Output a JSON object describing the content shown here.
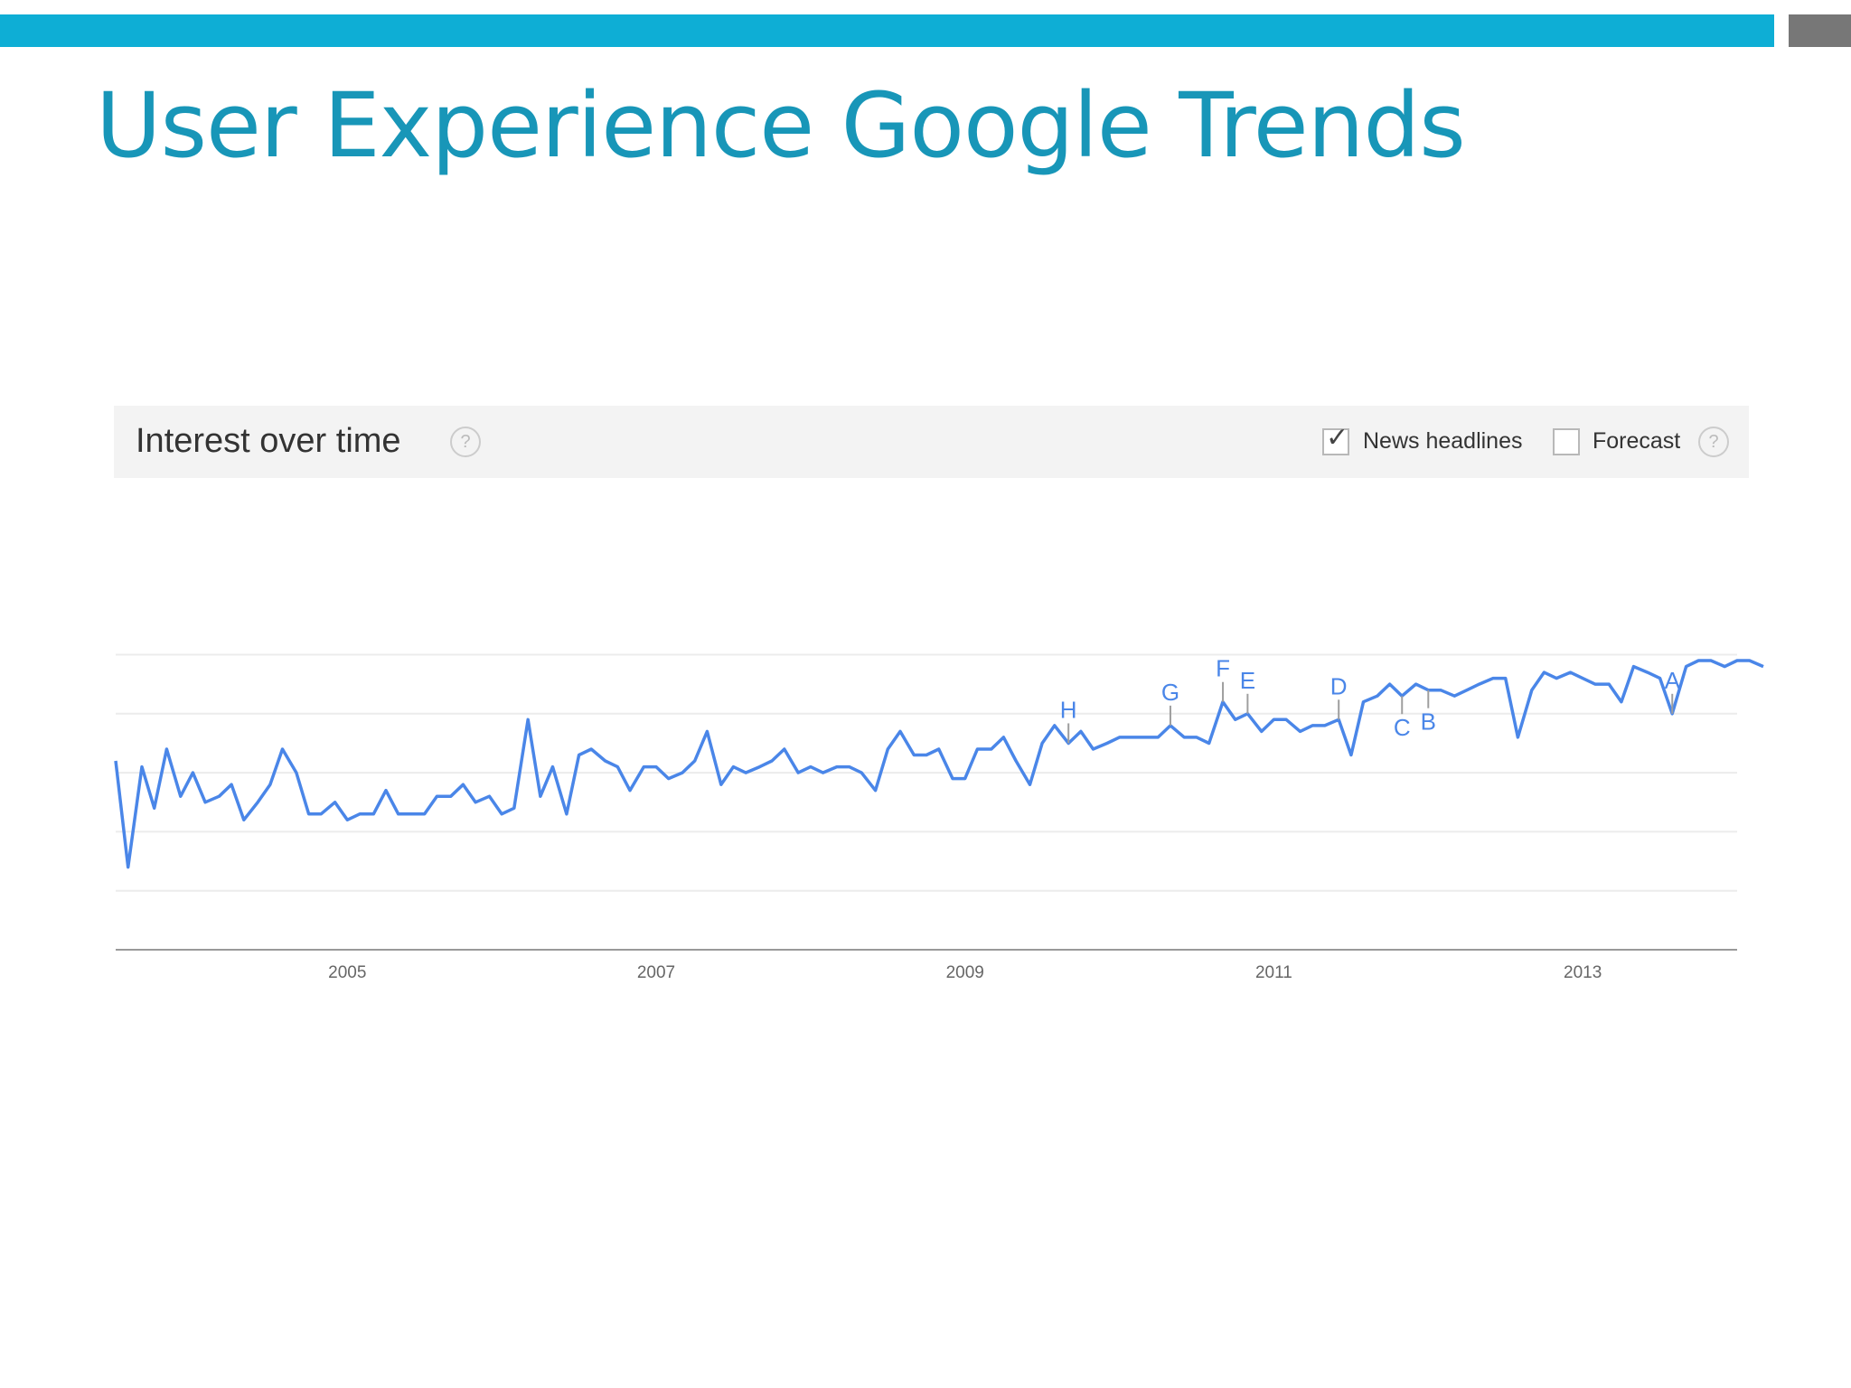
{
  "slide": {
    "title": "User Experience Google Trends"
  },
  "header": {
    "title": "Interest over time",
    "help_glyph": "?",
    "options": {
      "news_headlines": {
        "label": "News headlines",
        "checked": true
      },
      "forecast": {
        "label": "Forecast",
        "checked": false
      }
    }
  },
  "chart_data": {
    "type": "line",
    "title": "",
    "xlabel": "",
    "ylabel": "",
    "x_ticks": [
      "2005",
      "2007",
      "2009",
      "2011",
      "2013"
    ],
    "xlim": [
      2004.0,
      2014.5
    ],
    "ylim": [
      0,
      100
    ],
    "grid": true,
    "line_color": "#4a86e8",
    "annotation_color": "#4a86e8",
    "series": [
      {
        "points": [
          [
            2004.0,
            32
          ],
          [
            2004.08,
            14
          ],
          [
            2004.17,
            31
          ],
          [
            2004.25,
            24
          ],
          [
            2004.33,
            34
          ],
          [
            2004.42,
            26
          ],
          [
            2004.5,
            30
          ],
          [
            2004.58,
            25
          ],
          [
            2004.67,
            26
          ],
          [
            2004.75,
            28
          ],
          [
            2004.83,
            22
          ],
          [
            2004.92,
            25
          ],
          [
            2005.0,
            28
          ],
          [
            2005.08,
            34
          ],
          [
            2005.17,
            30
          ],
          [
            2005.25,
            23
          ],
          [
            2005.33,
            23
          ],
          [
            2005.42,
            25
          ],
          [
            2005.5,
            22
          ],
          [
            2005.58,
            23
          ],
          [
            2005.67,
            23
          ],
          [
            2005.75,
            27
          ],
          [
            2005.83,
            23
          ],
          [
            2005.92,
            23
          ],
          [
            2006.0,
            23
          ],
          [
            2006.08,
            26
          ],
          [
            2006.17,
            26
          ],
          [
            2006.25,
            28
          ],
          [
            2006.33,
            25
          ],
          [
            2006.42,
            26
          ],
          [
            2006.5,
            23
          ],
          [
            2006.58,
            24
          ],
          [
            2006.67,
            39
          ],
          [
            2006.75,
            26
          ],
          [
            2006.83,
            31
          ],
          [
            2006.92,
            23
          ],
          [
            2007.0,
            33
          ],
          [
            2007.08,
            34
          ],
          [
            2007.17,
            32
          ],
          [
            2007.25,
            31
          ],
          [
            2007.33,
            27
          ],
          [
            2007.42,
            31
          ],
          [
            2007.5,
            31
          ],
          [
            2007.58,
            29
          ],
          [
            2007.67,
            30
          ],
          [
            2007.75,
            32
          ],
          [
            2007.83,
            37
          ],
          [
            2007.92,
            28
          ],
          [
            2008.0,
            31
          ],
          [
            2008.08,
            30
          ],
          [
            2008.17,
            31
          ],
          [
            2008.25,
            32
          ],
          [
            2008.33,
            34
          ],
          [
            2008.42,
            30
          ],
          [
            2008.5,
            31
          ],
          [
            2008.58,
            30
          ],
          [
            2008.67,
            31
          ],
          [
            2008.75,
            31
          ],
          [
            2008.83,
            30
          ],
          [
            2008.92,
            27
          ],
          [
            2009.0,
            34
          ],
          [
            2009.08,
            37
          ],
          [
            2009.17,
            33
          ],
          [
            2009.25,
            33
          ],
          [
            2009.33,
            34
          ],
          [
            2009.42,
            29
          ],
          [
            2009.5,
            29
          ],
          [
            2009.58,
            34
          ],
          [
            2009.67,
            34
          ],
          [
            2009.75,
            36
          ],
          [
            2009.83,
            32
          ],
          [
            2009.92,
            28
          ],
          [
            2010.0,
            35
          ],
          [
            2010.08,
            38
          ],
          [
            2010.17,
            35
          ],
          [
            2010.25,
            37
          ],
          [
            2010.33,
            34
          ],
          [
            2010.42,
            35
          ],
          [
            2010.5,
            36
          ],
          [
            2010.58,
            36
          ],
          [
            2010.67,
            36
          ],
          [
            2010.75,
            36
          ],
          [
            2010.83,
            38
          ],
          [
            2010.92,
            36
          ],
          [
            2011.0,
            36
          ],
          [
            2011.08,
            35
          ],
          [
            2011.17,
            42
          ],
          [
            2011.25,
            39
          ],
          [
            2011.33,
            40
          ],
          [
            2011.42,
            37
          ],
          [
            2011.5,
            39
          ],
          [
            2011.58,
            39
          ],
          [
            2011.67,
            37
          ],
          [
            2011.75,
            38
          ],
          [
            2011.83,
            38
          ],
          [
            2011.92,
            39
          ],
          [
            2012.0,
            33
          ],
          [
            2012.08,
            42
          ],
          [
            2012.17,
            43
          ],
          [
            2012.25,
            45
          ],
          [
            2012.33,
            43
          ],
          [
            2012.42,
            45
          ],
          [
            2012.5,
            44
          ],
          [
            2012.58,
            44
          ],
          [
            2012.67,
            43
          ],
          [
            2012.75,
            44
          ],
          [
            2012.83,
            45
          ],
          [
            2012.92,
            46
          ],
          [
            2013.0,
            46
          ],
          [
            2013.08,
            36
          ],
          [
            2013.17,
            44
          ],
          [
            2013.25,
            47
          ],
          [
            2013.33,
            46
          ],
          [
            2013.42,
            47
          ],
          [
            2013.5,
            46
          ],
          [
            2013.58,
            45
          ],
          [
            2013.67,
            45
          ],
          [
            2013.75,
            42
          ],
          [
            2013.83,
            48
          ],
          [
            2013.92,
            47
          ],
          [
            2014.0,
            46
          ],
          [
            2014.08,
            40
          ],
          [
            2014.17,
            48
          ],
          [
            2014.25,
            49
          ],
          [
            2014.33,
            49
          ],
          [
            2014.42,
            48
          ],
          [
            2014.5,
            49
          ],
          [
            2014.58,
            49
          ],
          [
            2014.67,
            48
          ]
        ]
      }
    ],
    "annotations": [
      {
        "label": "H",
        "x": 2010.17
      },
      {
        "label": "G",
        "x": 2010.83
      },
      {
        "label": "F",
        "x": 2011.17
      },
      {
        "label": "E",
        "x": 2011.33
      },
      {
        "label": "D",
        "x": 2011.92
      },
      {
        "label": "C",
        "x": 2012.33
      },
      {
        "label": "B",
        "x": 2012.5
      },
      {
        "label": "A",
        "x": 2014.08
      }
    ]
  }
}
